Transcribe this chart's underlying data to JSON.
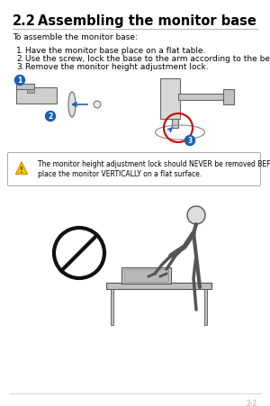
{
  "title_num": "2.2",
  "title_text": "Assembling the monitor base",
  "subtitle": "To assemble the monitor base:",
  "steps": [
    "Have the monitor base place on a flat table.",
    "Use the screw, lock the base to the arm according to the below drawing.",
    "Remove the monitor height adjustment lock."
  ],
  "warning_line1": "The monitor height adjustment lock should NEVER be removed BEFORE you",
  "warning_line2": "place the monitor VERTICALLY on a flat surface.",
  "page_number": "2-2",
  "bg_color": "#ffffff",
  "text_color": "#000000",
  "gray_color": "#666666",
  "light_gray": "#dddddd",
  "mid_gray": "#999999",
  "bullet_color": "#1a5fb4",
  "red_color": "#cc0000",
  "line_color": "#cccccc",
  "footer_color": "#aaaaaa"
}
